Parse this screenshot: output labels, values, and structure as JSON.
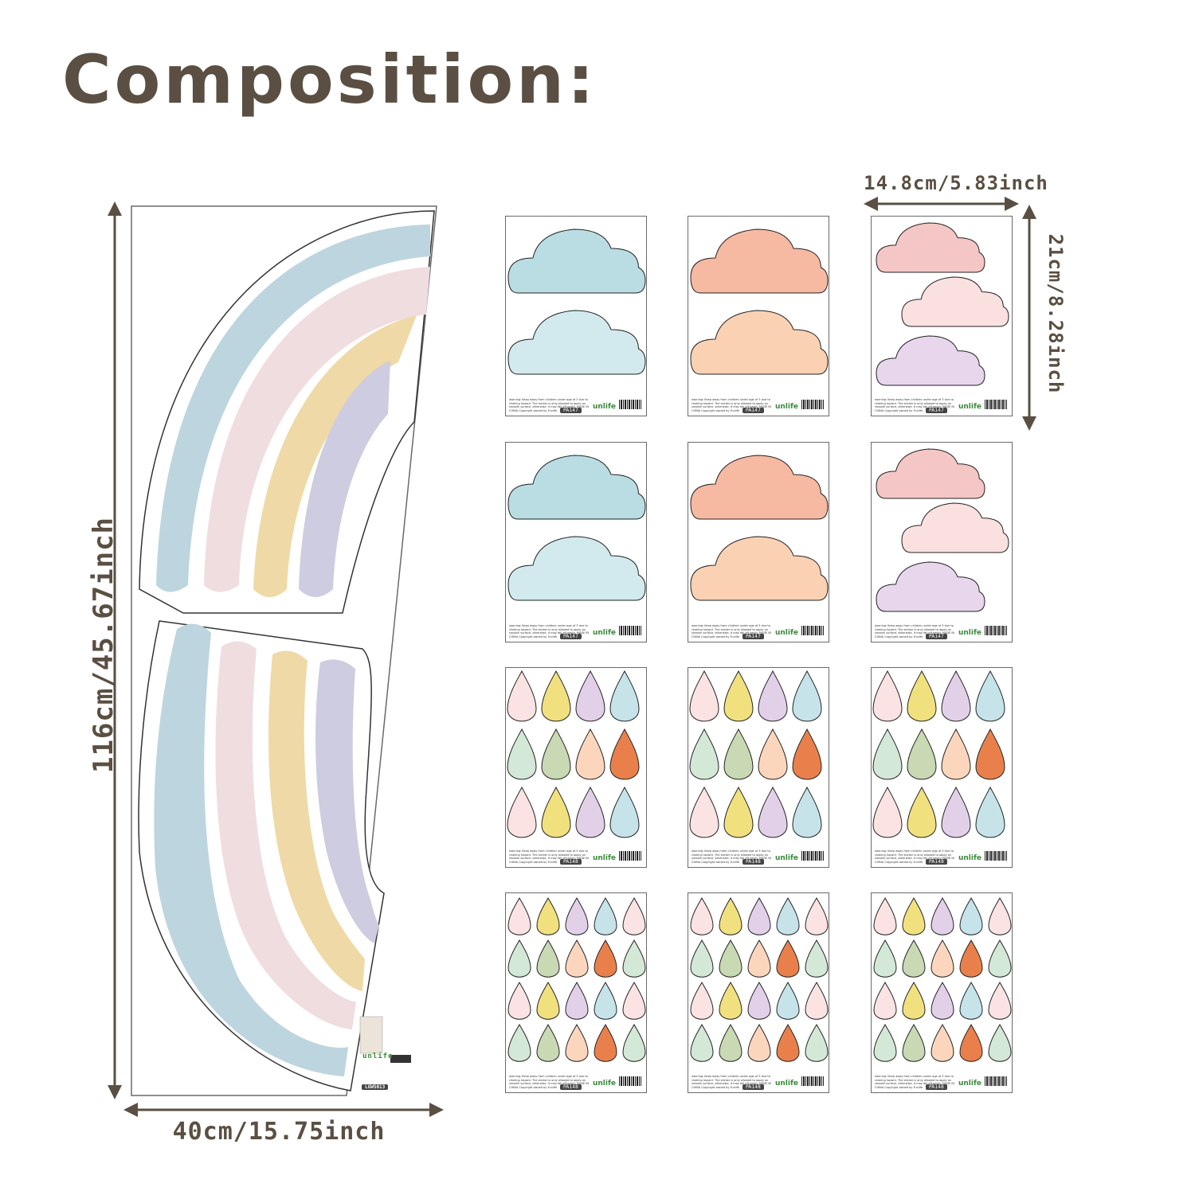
{
  "heading": "Composition:",
  "dimensions": {
    "rainbow_width": "40cm/15.75inch",
    "rainbow_height": "116cm/45.67inch",
    "sheet_width": "14.8cm/5.83inch",
    "sheet_height": "21cm/8.28inch"
  },
  "rainbow_sheet": {
    "code": "LGWS013",
    "logo": "unlife"
  },
  "sheets": [
    {
      "kind": "clouds2",
      "colors": [
        "#b9dde2",
        "#d2eaee"
      ],
      "code": "PA147",
      "logo": "unlife"
    },
    {
      "kind": "clouds2",
      "colors": [
        "#f6b9a1",
        "#fbd1b4"
      ],
      "code": "PA147",
      "logo": "unlife"
    },
    {
      "kind": "clouds3",
      "colors": [
        "#f5c6c6",
        "#fbe0e0",
        "#e7d6ec"
      ],
      "code": "PA147",
      "logo": "unlife"
    },
    {
      "kind": "clouds2",
      "colors": [
        "#b9dde2",
        "#d2eaee"
      ],
      "code": "PA147",
      "logo": "unlife"
    },
    {
      "kind": "clouds2",
      "colors": [
        "#f6b9a1",
        "#fbd1b4"
      ],
      "code": "PA147",
      "logo": "unlife"
    },
    {
      "kind": "clouds3",
      "colors": [
        "#f5c6c6",
        "#fbe0e0",
        "#e7d6ec"
      ],
      "code": "PA147",
      "logo": "unlife"
    },
    {
      "kind": "drops4",
      "code": "PA148",
      "logo": "unlife"
    },
    {
      "kind": "drops4",
      "code": "PA148",
      "logo": "unlife"
    },
    {
      "kind": "drops4",
      "code": "PA148",
      "logo": "unlife"
    },
    {
      "kind": "drops5",
      "code": "PA148",
      "logo": "unlife"
    },
    {
      "kind": "drops5",
      "code": "PA148",
      "logo": "unlife"
    },
    {
      "kind": "drops5",
      "code": "PA148",
      "logo": "unlife"
    }
  ],
  "sheet_text": {
    "warning": "warning: Keep away from children under age of 3 due to choking hazard. The sticker is only allowed to apply on smooth surface, otherwise, it may fall off easily.",
    "origin": "MADE IN CHINA",
    "copyright": "Copyright owned by Funlife"
  },
  "colors": {
    "text": "#5a4f42",
    "rainbow_blue": "#bdd5de",
    "rainbow_pink": "#f0dde0",
    "rainbow_yellow": "#efd9a6",
    "rainbow_lavender": "#cdcce0"
  },
  "drop_palette": {
    "drops4": [
      "#fbe3e3",
      "#f1e07e",
      "#e2d0e9",
      "#c6e3ea",
      "#d3e8d7",
      "#c8d9b4",
      "#fbd6bd",
      "#e9804b",
      "#fbe3e3",
      "#f1e07e",
      "#e2d0e9",
      "#c6e3ea"
    ],
    "drops5": [
      "#fbe3e3",
      "#f1e07e",
      "#e2d0e9",
      "#c6e3ea",
      "#fbe3e3",
      "#d3e8d7",
      "#c8d9b4",
      "#fbd6bd",
      "#e9804b",
      "#d3e8d7",
      "#fbe3e3",
      "#f1e07e",
      "#e2d0e9",
      "#c6e3ea",
      "#fbe3e3",
      "#d3e8d7",
      "#c8d9b4",
      "#fbd6bd",
      "#e9804b",
      "#d3e8d7"
    ]
  }
}
